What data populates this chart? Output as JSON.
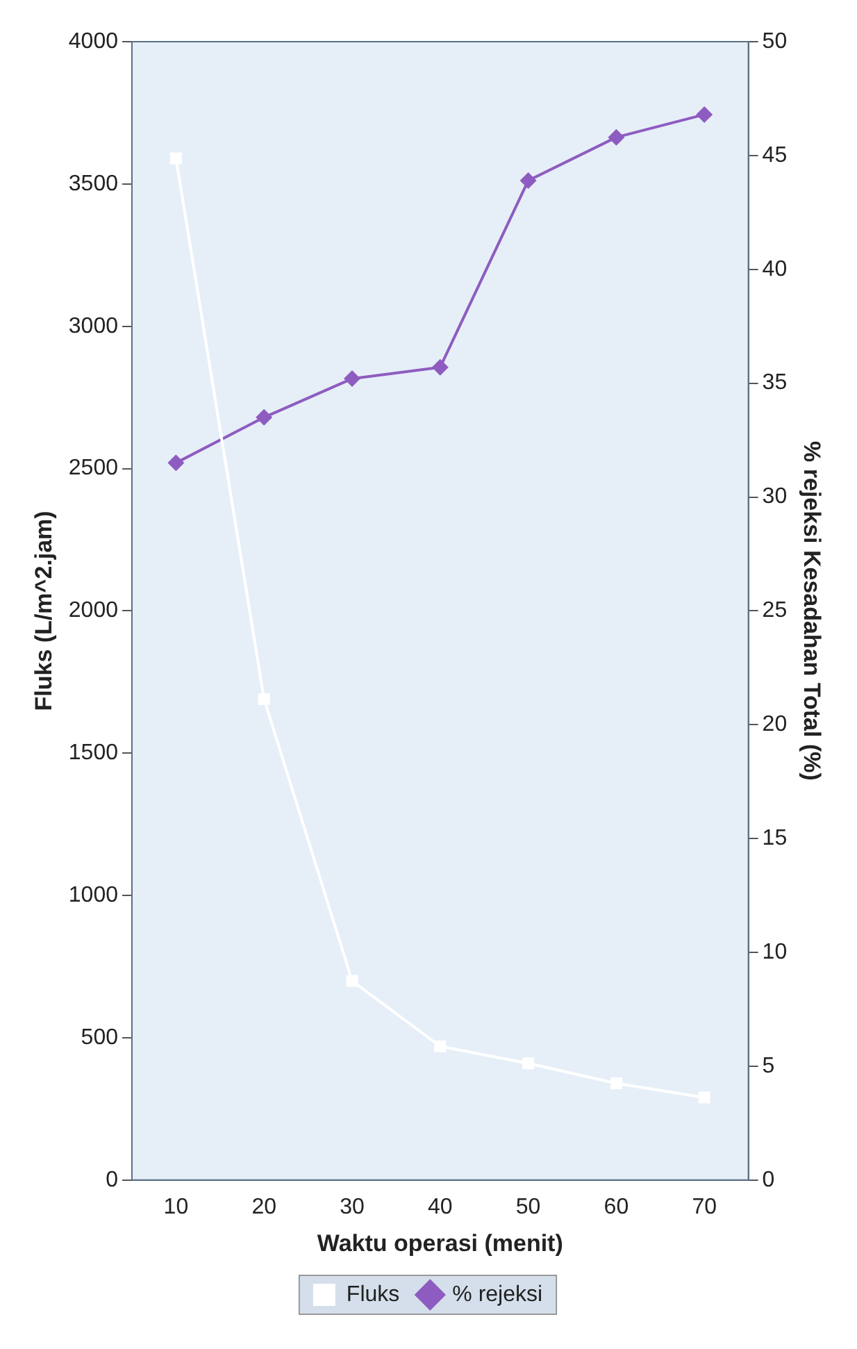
{
  "chart_data": {
    "type": "line",
    "xlabel": "Waktu operasi (menit)",
    "ylabel": "Fluks (L/m^2.jam)",
    "y2label": "% rejeksi Kesadahan Total (%)",
    "categories": [
      "10",
      "20",
      "30",
      "40",
      "50",
      "60",
      "70"
    ],
    "series": [
      {
        "name": "Fluks",
        "color": "#ffffff",
        "marker": "square",
        "values": [
          3590,
          1690,
          700,
          470,
          410,
          340,
          290
        ]
      },
      {
        "name": "% rejeksi",
        "color": "#8e5cc0",
        "marker": "diamond",
        "axis": "y2",
        "values": [
          31.5,
          33.5,
          35.2,
          35.7,
          43.9,
          45.8,
          46.8
        ]
      }
    ],
    "ylim": [
      0,
      4000
    ],
    "yticks": [
      0,
      500,
      1000,
      1500,
      2000,
      2500,
      3000,
      3500,
      4000
    ],
    "y2lim": [
      0,
      50
    ],
    "y2ticks": [
      0,
      5,
      10,
      15,
      20,
      25,
      30,
      35,
      40,
      45,
      50
    ],
    "grid": false,
    "legend": "bottom",
    "line_style": "solid"
  }
}
